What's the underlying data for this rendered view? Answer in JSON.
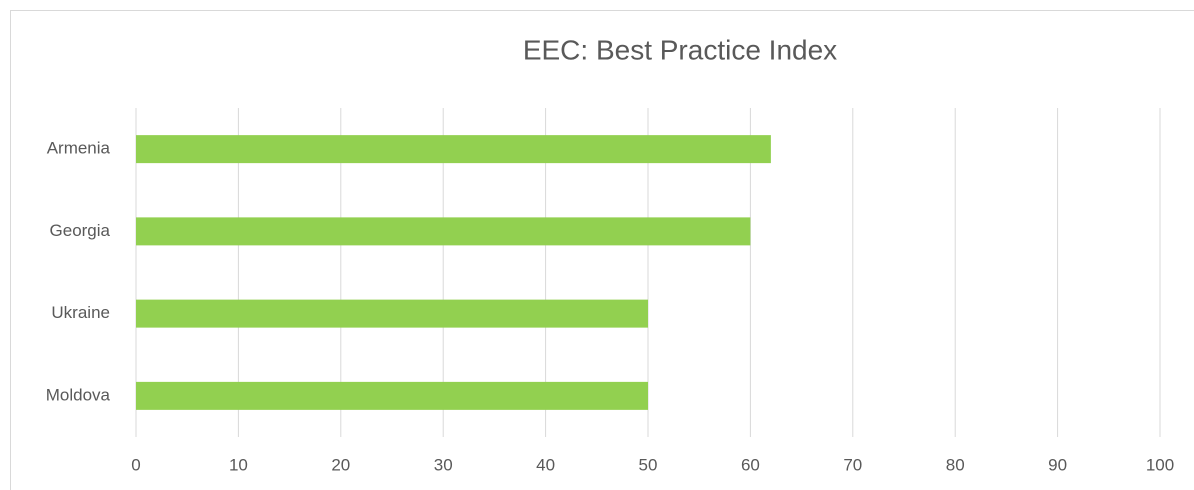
{
  "chart_data": {
    "type": "bar",
    "orientation": "horizontal",
    "title": "EEC: Best Practice Index",
    "categories": [
      "Armenia",
      "Georgia",
      "Ukraine",
      "Moldova"
    ],
    "values": [
      62,
      60,
      50,
      50
    ],
    "color": "#92d050",
    "xlim": [
      0,
      100
    ],
    "xticks": [
      0,
      10,
      20,
      30,
      40,
      50,
      60,
      70,
      80,
      90,
      100
    ],
    "grid": true
  }
}
